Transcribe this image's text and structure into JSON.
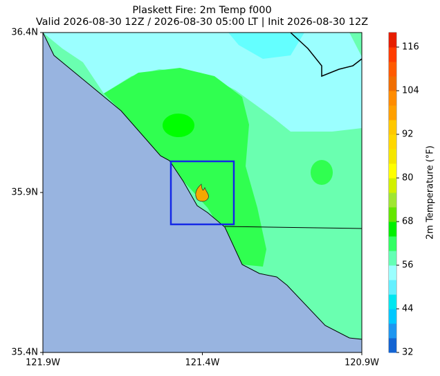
{
  "map": {
    "title": "Plaskett Fire: 2m Temp f000",
    "subtitle": "Valid 2026-08-30 12Z / 2026-08-30 05:00 LT | Init 2026-08-30 12Z",
    "xlim": [
      -121.9,
      -120.9
    ],
    "ylim": [
      35.4,
      36.4
    ],
    "xticks": [
      {
        "value": -121.9,
        "label": "121.9W"
      },
      {
        "value": -121.4,
        "label": "121.4W"
      },
      {
        "value": -120.9,
        "label": "120.9W"
      }
    ],
    "yticks": [
      {
        "value": 35.4,
        "label": "35.4N"
      },
      {
        "value": 35.9,
        "label": "35.9N"
      },
      {
        "value": 36.4,
        "label": "36.4N"
      }
    ],
    "colorbar": {
      "label": "2m Temperature (°F)",
      "lim": [
        32,
        120
      ],
      "ticks": [
        32,
        44,
        56,
        68,
        80,
        92,
        104,
        116
      ],
      "colors": [
        "#1464d2",
        "#1e96f0",
        "#00c8ff",
        "#00e6f0",
        "#64f0ff",
        "#9bffff",
        "#64ffb4",
        "#32ff64",
        "#00f000",
        "#64e600",
        "#a0e632",
        "#d2f000",
        "#ffff00",
        "#f5e600",
        "#ffd700",
        "#ffc800",
        "#ffa000",
        "#ff8c00",
        "#f06e00",
        "#ff5a00",
        "#ff3c00",
        "#e61e00"
      ]
    }
  }
}
